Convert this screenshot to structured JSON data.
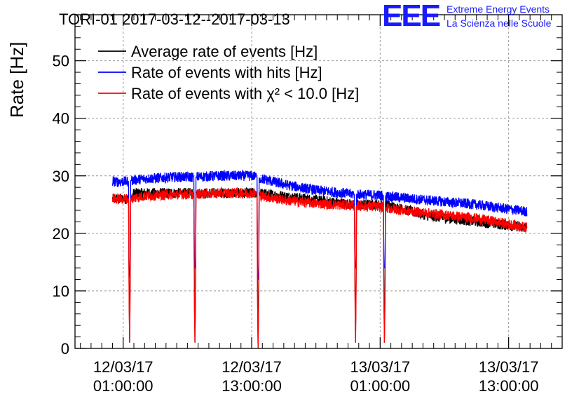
{
  "chart_data": {
    "type": "line",
    "title": "TORI-01 2017-03-12--2017-03-13",
    "ylabel": "Rate [Hz]",
    "xlabel": "",
    "ylim": [
      0,
      58
    ],
    "yticks": [
      0,
      10,
      20,
      30,
      40,
      50
    ],
    "x_unit": "hours since 2017-03-12 00:00",
    "xlim": [
      -3.5,
      42.0
    ],
    "xticks": [
      {
        "x": 1,
        "date": "12/03/17",
        "time": "01:00:00"
      },
      {
        "x": 13,
        "date": "12/03/17",
        "time": "13:00:00"
      },
      {
        "x": 25,
        "date": "13/03/17",
        "time": "01:00:00"
      },
      {
        "x": 37,
        "date": "13/03/17",
        "time": "13:00:00"
      }
    ],
    "grid": true,
    "legend_position": "top-left",
    "series": [
      {
        "name": "Average rate of events [Hz]",
        "color": "#000000",
        "x": [
          0,
          1.5,
          1.55,
          1.6,
          1.65,
          1.7,
          2.0,
          7.6,
          7.65,
          7.7,
          7.75,
          7.8,
          13.5,
          13.55,
          13.6,
          13.65,
          13.7,
          22.6,
          22.65,
          22.7,
          22.75,
          22.8,
          25.3,
          25.35,
          25.4,
          25.45,
          25.5,
          29.6,
          38.7
        ],
        "y": [
          26,
          26,
          10,
          1,
          12,
          26,
          27,
          27,
          8,
          1,
          8,
          27,
          27,
          9,
          0,
          9,
          27,
          25,
          10,
          1,
          10,
          25,
          25,
          10,
          1,
          10,
          25,
          23,
          21
        ]
      },
      {
        "name": "Rate of events with hits [Hz]",
        "color": "#0000ff",
        "x": [
          0,
          1.5,
          1.55,
          1.6,
          1.65,
          1.7,
          3.0,
          6.0,
          7.6,
          7.65,
          7.7,
          7.75,
          7.8,
          10.0,
          13.0,
          13.5,
          13.55,
          13.6,
          13.65,
          13.7,
          16.0,
          19.0,
          22.6,
          22.65,
          22.7,
          22.75,
          22.8,
          25.3,
          25.35,
          25.4,
          25.45,
          25.5,
          28.0,
          31.0,
          34.0,
          37.0,
          38.7
        ],
        "y": [
          29,
          29,
          12,
          14,
          14,
          29.2,
          29.5,
          29.8,
          29.8,
          14,
          14,
          14,
          29.8,
          30,
          30,
          29.8,
          12,
          12,
          12,
          29.6,
          28.5,
          27.5,
          26.8,
          14,
          14,
          14,
          26.8,
          26.6,
          14,
          14,
          14,
          26.5,
          26,
          25.5,
          25,
          24.2,
          23.8
        ]
      },
      {
        "name": "Rate of events with χ² < 10.0 [Hz]",
        "color": "#ff0000",
        "x": [
          0,
          1.5,
          1.55,
          1.6,
          1.65,
          1.7,
          3.0,
          6.0,
          7.6,
          7.65,
          7.7,
          7.75,
          7.8,
          10.0,
          13.0,
          13.5,
          13.55,
          13.6,
          13.65,
          13.7,
          16.0,
          19.0,
          22.6,
          22.65,
          22.7,
          22.75,
          22.8,
          25.3,
          25.35,
          25.4,
          25.45,
          25.5,
          28.0,
          31.0,
          34.0,
          37.0,
          38.7
        ],
        "y": [
          26,
          26,
          8,
          1,
          8,
          26,
          26.5,
          26.8,
          26.8,
          7,
          1,
          7,
          26.8,
          27,
          27,
          26.9,
          6,
          0,
          6,
          26.6,
          25.8,
          25.2,
          24.8,
          8,
          1,
          8,
          24.8,
          24.6,
          8,
          1,
          8,
          24.4,
          23.8,
          23.2,
          22.6,
          21.6,
          21
        ]
      }
    ],
    "noise": {
      "amplitude": 0.9
    }
  },
  "logo": {
    "mark": "EEE",
    "line1": "Extreme Energy Events",
    "line2": "La Scienza nelle Scuole"
  }
}
